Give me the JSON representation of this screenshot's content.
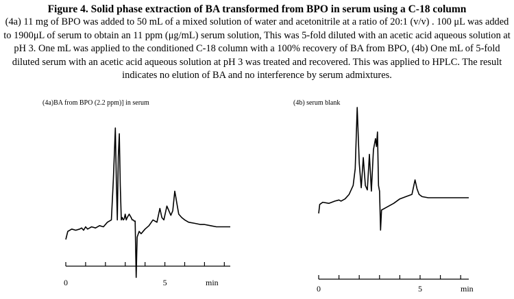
{
  "figure": {
    "title": "Figure 4. Solid phase extraction of BA transformed from BPO in serum using a C-18 column",
    "caption": "(4a) 11 mg of BPO was added to 50 mL of a mixed solution of water and acetonitrile at a ratio of 20:1 (v/v) . 100 μL was added to 1900μL of serum to obtain an 11 ppm (μg/mL) serum solution, This was 5-fold diluted with an acetic acid aqueous solution at pH 3. One mL was applied to the conditioned C-18 column with a 100% recovery of BA from BPO, (4b) One mL of 5-fold diluted serum with an acetic acid aqueous solution at pH 3 was treated and recovered. This was applied to HPLC. The result indicates no elution of BA and no interference by serum admixtures."
  },
  "chart_data": [
    {
      "type": "line",
      "title": "(4a)BA from BPO (2.2 ppm)] in serum",
      "xlabel": "min",
      "ylabel": "",
      "tick_labels": [
        "0",
        "5"
      ],
      "xlim": [
        0,
        8.3
      ],
      "grid": false,
      "series": [
        {
          "x": [
            0.0,
            0.1,
            0.3,
            0.5,
            0.7,
            0.8,
            0.9,
            1.0,
            1.1,
            1.2,
            1.3,
            1.5,
            1.7,
            1.9,
            2.1,
            2.3,
            2.4,
            2.5,
            2.55,
            2.6,
            2.65,
            2.7,
            2.75,
            2.8,
            2.85,
            2.9,
            2.95,
            3.0,
            3.05,
            3.1,
            3.2,
            3.3,
            3.35,
            3.4,
            3.45,
            3.5,
            3.55,
            3.6,
            3.7,
            3.8,
            3.9,
            4.0,
            4.2,
            4.4,
            4.6,
            4.75,
            4.85,
            4.95,
            5.1,
            5.3,
            5.4,
            5.5,
            5.55,
            5.6,
            5.7,
            5.85,
            6.0,
            6.2,
            6.5,
            6.8,
            7.0,
            7.3,
            7.6,
            7.9,
            8.3
          ],
          "y": [
            0.03,
            0.1,
            0.12,
            0.11,
            0.12,
            0.13,
            0.11,
            0.14,
            0.12,
            0.13,
            0.14,
            0.13,
            0.15,
            0.14,
            0.18,
            0.2,
            0.55,
            1.0,
            0.55,
            0.2,
            0.75,
            0.95,
            0.5,
            0.2,
            0.22,
            0.2,
            0.21,
            0.25,
            0.2,
            0.22,
            0.25,
            0.22,
            0.2,
            0.2,
            0.19,
            0.19,
            -0.3,
            0.05,
            0.1,
            0.08,
            0.1,
            0.12,
            0.15,
            0.2,
            0.18,
            0.3,
            0.22,
            0.2,
            0.32,
            0.24,
            0.28,
            0.45,
            0.4,
            0.35,
            0.25,
            0.22,
            0.2,
            0.18,
            0.17,
            0.16,
            0.16,
            0.15,
            0.14,
            0.14,
            0.14
          ]
        }
      ]
    },
    {
      "type": "line",
      "title": "(4b) serum blank",
      "xlabel": "min",
      "ylabel": "",
      "tick_labels": [
        "0",
        "5"
      ],
      "xlim": [
        0,
        7.4
      ],
      "grid": false,
      "series": [
        {
          "x": [
            0.0,
            0.05,
            0.2,
            0.5,
            0.8,
            1.0,
            1.1,
            1.3,
            1.5,
            1.7,
            1.8,
            1.9,
            2.0,
            2.1,
            2.2,
            2.3,
            2.4,
            2.5,
            2.6,
            2.7,
            2.8,
            2.85,
            2.9,
            2.95,
            3.0,
            3.05,
            3.1,
            3.3,
            3.5,
            3.7,
            4.0,
            4.3,
            4.6,
            4.75,
            4.85,
            4.95,
            5.1,
            5.4,
            5.7,
            6.0,
            6.3,
            6.6,
            7.0,
            7.4
          ],
          "y": [
            0.05,
            0.13,
            0.15,
            0.14,
            0.16,
            0.17,
            0.16,
            0.18,
            0.22,
            0.3,
            0.45,
            1.0,
            0.5,
            0.28,
            0.55,
            0.3,
            0.26,
            0.58,
            0.25,
            0.62,
            0.72,
            0.65,
            0.78,
            0.3,
            0.25,
            -0.1,
            0.08,
            0.1,
            0.12,
            0.14,
            0.18,
            0.2,
            0.22,
            0.35,
            0.27,
            0.22,
            0.2,
            0.19,
            0.19,
            0.19,
            0.19,
            0.19,
            0.19,
            0.19
          ]
        }
      ]
    }
  ]
}
